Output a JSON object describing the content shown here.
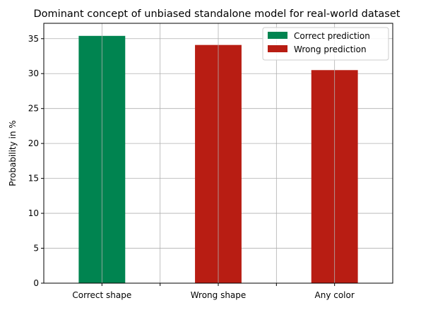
{
  "chart_data": {
    "type": "bar",
    "title": "Dominant concept of unbiased standalone model for real-world dataset",
    "xlabel": "",
    "ylabel": "Probability in %",
    "categories": [
      "Correct shape",
      "Wrong shape",
      "Any color"
    ],
    "values": [
      35.4,
      34.1,
      30.5
    ],
    "bar_series": [
      "Correct prediction",
      "Wrong prediction",
      "Wrong prediction"
    ],
    "series": [
      {
        "name": "Correct prediction",
        "color": "#008450"
      },
      {
        "name": "Wrong prediction",
        "color": "#B81D13"
      }
    ],
    "ylim": [
      0,
      37.2
    ],
    "yticks": [
      0,
      5,
      10,
      15,
      20,
      25,
      30,
      35
    ],
    "grid": true,
    "legend_position": "top-right"
  }
}
